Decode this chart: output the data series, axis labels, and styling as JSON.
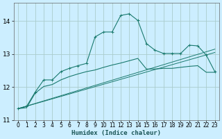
{
  "title": "",
  "xlabel": "Humidex (Indice chaleur)",
  "background_color": "#cceeff",
  "grid_color": "#aacccc",
  "line_color": "#1a7a6e",
  "xlim": [
    -0.5,
    23.5
  ],
  "ylim": [
    11,
    14.55
  ],
  "yticks": [
    11,
    12,
    13,
    14
  ],
  "xticks": [
    0,
    1,
    2,
    3,
    4,
    5,
    6,
    7,
    8,
    9,
    10,
    11,
    12,
    13,
    14,
    15,
    16,
    17,
    18,
    19,
    20,
    21,
    22,
    23
  ],
  "curve1_x": [
    0,
    1,
    2,
    3,
    4,
    5,
    6,
    7,
    8,
    9,
    10,
    11,
    12,
    13,
    14,
    15,
    16,
    17,
    18,
    19,
    20,
    21,
    22,
    23
  ],
  "curve1_y": [
    11.35,
    11.42,
    11.85,
    12.22,
    12.22,
    12.47,
    12.57,
    12.65,
    12.72,
    13.52,
    13.67,
    13.67,
    14.17,
    14.22,
    14.02,
    13.32,
    13.12,
    13.02,
    13.02,
    13.02,
    13.27,
    13.25,
    12.97,
    12.47
  ],
  "curve2_x": [
    0,
    1,
    2,
    3,
    4,
    5,
    6,
    7,
    8,
    9,
    10,
    11,
    12,
    13,
    14,
    15,
    16,
    17,
    18,
    19,
    20,
    21,
    22,
    23
  ],
  "curve2_y": [
    11.35,
    11.38,
    11.82,
    12.02,
    12.08,
    12.22,
    12.32,
    12.4,
    12.47,
    12.52,
    12.6,
    12.67,
    12.73,
    12.8,
    12.87,
    12.55,
    12.55,
    12.57,
    12.57,
    12.6,
    12.63,
    12.65,
    12.45,
    12.45
  ],
  "line1_y_start": 11.35,
  "line1_y_end": 13.05,
  "line2_y_start": 11.35,
  "line2_y_end": 13.15
}
